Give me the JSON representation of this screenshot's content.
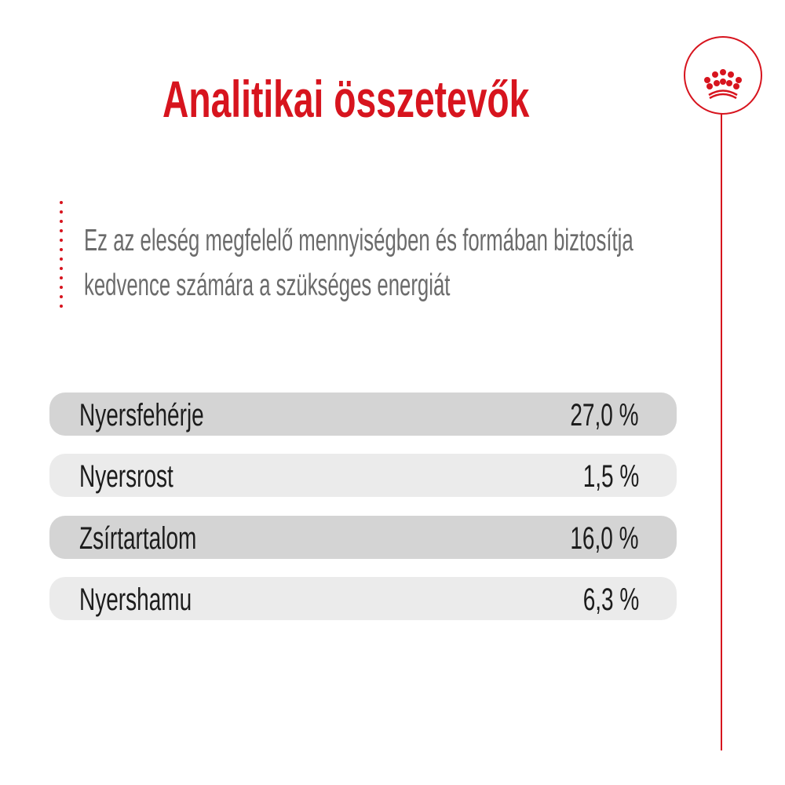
{
  "title": "Analitikai összetevők",
  "description": {
    "line1": "Ez az eleség megfelelő mennyiségben és formában biztosítja",
    "line2": "kedvence számára a szükséges energiát"
  },
  "nutrients": [
    {
      "name": "Nyersfehérje",
      "value": "27,0 %"
    },
    {
      "name": "Nyersrost",
      "value": "1,5 %"
    },
    {
      "name": "Zsírtartalom",
      "value": "16,0 %"
    },
    {
      "name": "Nyershamu",
      "value": "6,3 %"
    }
  ],
  "logo": {
    "icon": "crown-icon"
  },
  "colors": {
    "accent": "#d7141e",
    "row_dark": "#d4d4d4",
    "row_light": "#ebebeb",
    "text": "#1c1c1c",
    "description": "#6b6b6b"
  }
}
